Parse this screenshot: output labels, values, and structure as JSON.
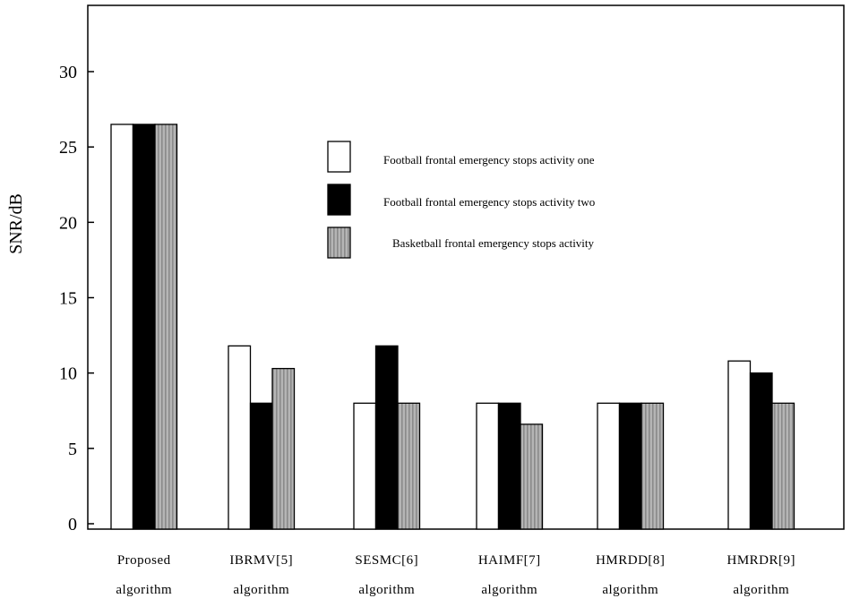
{
  "chart_data": {
    "type": "bar",
    "ylabel": "SNR/dB",
    "xlabel": "",
    "ylim": [
      0,
      33
    ],
    "yticks": [
      0,
      5,
      10,
      15,
      20,
      25,
      30
    ],
    "grid": false,
    "legend_position": "top-center",
    "categories": [
      [
        "Proposed",
        "algorithm"
      ],
      [
        "IBRMV[5]",
        "algorithm"
      ],
      [
        "SESMC[6]",
        "algorithm"
      ],
      [
        "HAIMF[7]",
        "algorithm"
      ],
      [
        "HMRDD[8]",
        "algorithm"
      ],
      [
        "HMRDR[9]",
        "algorithm"
      ]
    ],
    "series": [
      {
        "name": "Football frontal emergency stops activity one",
        "style": "white",
        "values": [
          26.5,
          11.8,
          8.0,
          8.0,
          8.0,
          10.8
        ]
      },
      {
        "name": "Football frontal emergency stops activity two",
        "style": "black",
        "values": [
          26.5,
          8.0,
          11.8,
          8.0,
          8.0,
          10.0
        ]
      },
      {
        "name": "Basketball frontal emergency stops activity",
        "style": "gray",
        "values": [
          26.5,
          10.3,
          8.0,
          6.6,
          8.0,
          8.0
        ]
      }
    ]
  }
}
